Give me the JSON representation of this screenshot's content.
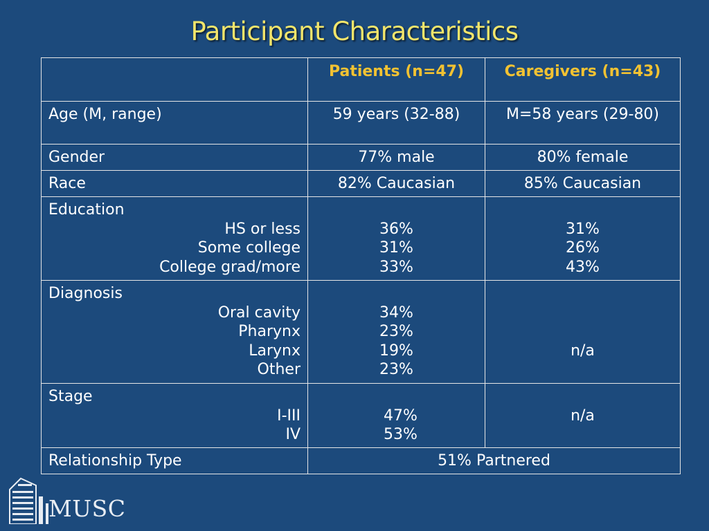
{
  "title": "Participant Characteristics",
  "colors": {
    "background": "#1c4a7c",
    "title": "#f2e56b",
    "header": "#f2c232",
    "border": "#e6e6e6"
  },
  "table": {
    "headers": [
      "",
      "Patients (n=47)",
      "Caregivers (n=43)"
    ],
    "age": {
      "label": "Age (M, range)",
      "patients": "59 years (32-88)",
      "caregivers": "M=58 years (29-80)"
    },
    "gender": {
      "label": "Gender",
      "patients": "77% male",
      "caregivers": "80% female"
    },
    "race": {
      "label": "Race",
      "patients": "82% Caucasian",
      "caregivers": "85% Caucasian"
    },
    "education": {
      "label": "Education",
      "subs": [
        "HS or less",
        "Some college",
        "College grad/more"
      ],
      "patients": [
        "36%",
        "31%",
        "33%"
      ],
      "caregivers": [
        "31%",
        "26%",
        "43%"
      ]
    },
    "diagnosis": {
      "label": "Diagnosis",
      "subs": [
        "Oral cavity",
        "Pharynx",
        "Larynx",
        "Other"
      ],
      "patients": [
        "34%",
        "23%",
        "19%",
        "23%"
      ],
      "caregivers": "n/a"
    },
    "stage": {
      "label": "Stage",
      "subs": [
        "I-III",
        "IV"
      ],
      "patients": [
        "47%",
        "53%"
      ],
      "caregivers": "n/a"
    },
    "relationship": {
      "label": "Relationship Type",
      "value": "51% Partnered"
    }
  },
  "logo": {
    "text": "MUSC",
    "icon": "musc-building-logo-icon"
  }
}
